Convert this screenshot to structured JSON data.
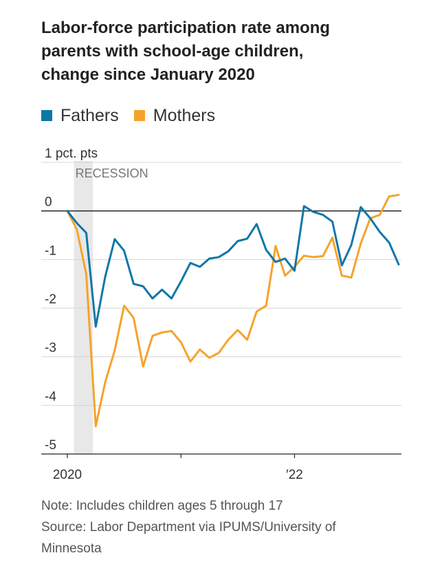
{
  "title": "Labor-force participation rate among parents with school-age children, change since January 2020",
  "legend": [
    {
      "label": "Fathers",
      "color": "#0e77a8"
    },
    {
      "label": "Mothers",
      "color": "#f5a32a"
    }
  ],
  "chart_data": {
    "type": "line",
    "title": "Labor-force participation rate among parents with school-age children, change since January 2020",
    "ylabel_unit": "1 pct. pts",
    "ylim": [
      -5,
      1
    ],
    "yticks": [
      1,
      0,
      -1,
      -2,
      -3,
      -4,
      -5
    ],
    "ytick_labels": [
      "1 pct. pts",
      "0",
      "-1",
      "-2",
      "-3",
      "-4",
      "-5"
    ],
    "xticks": [
      {
        "x": "2020-01",
        "label": "2020"
      },
      {
        "x": "2021-01",
        "label": ""
      },
      {
        "x": "2022-01",
        "label": "′22"
      }
    ],
    "xlim": [
      "2020-01",
      "2022-12"
    ],
    "shaded_regions": [
      {
        "start": "2020-02",
        "end": "2020-04",
        "label": "RECESSION"
      }
    ],
    "grid": "horizontal",
    "legend_position": "top-left",
    "x": [
      "2020-01",
      "2020-02",
      "2020-03",
      "2020-04",
      "2020-05",
      "2020-06",
      "2020-07",
      "2020-08",
      "2020-09",
      "2020-10",
      "2020-11",
      "2020-12",
      "2021-01",
      "2021-02",
      "2021-03",
      "2021-04",
      "2021-05",
      "2021-06",
      "2021-07",
      "2021-08",
      "2021-09",
      "2021-10",
      "2021-11",
      "2021-12",
      "2022-01",
      "2022-02",
      "2022-03",
      "2022-04",
      "2022-05",
      "2022-06",
      "2022-07",
      "2022-08",
      "2022-09",
      "2022-10",
      "2022-11",
      "2022-12"
    ],
    "series": [
      {
        "name": "Fathers",
        "color": "#0e77a8",
        "values": [
          0.0,
          -0.25,
          -0.45,
          -2.38,
          -1.35,
          -0.58,
          -0.82,
          -1.5,
          -1.55,
          -1.8,
          -1.62,
          -1.8,
          -1.45,
          -1.07,
          -1.15,
          -0.98,
          -0.95,
          -0.83,
          -0.62,
          -0.57,
          -0.27,
          -0.8,
          -1.05,
          -0.98,
          -1.23,
          0.1,
          -0.02,
          -0.08,
          -0.22,
          -1.12,
          -0.7,
          0.08,
          -0.15,
          -0.43,
          -0.65,
          -1.1
        ]
      },
      {
        "name": "Mothers",
        "color": "#f5a32a",
        "values": [
          0.0,
          -0.38,
          -1.3,
          -4.43,
          -3.52,
          -2.87,
          -1.95,
          -2.2,
          -3.2,
          -2.57,
          -2.5,
          -2.47,
          -2.7,
          -3.1,
          -2.85,
          -3.02,
          -2.92,
          -2.65,
          -2.45,
          -2.65,
          -2.07,
          -1.95,
          -0.72,
          -1.33,
          -1.15,
          -0.92,
          -0.95,
          -0.93,
          -0.55,
          -1.33,
          -1.37,
          -0.67,
          -0.15,
          -0.08,
          0.3,
          0.33
        ]
      }
    ]
  },
  "notes": {
    "note": "Note: Includes children ages 5 through 17",
    "source": "Source: Labor Department via IPUMS/University of Minnesota"
  }
}
